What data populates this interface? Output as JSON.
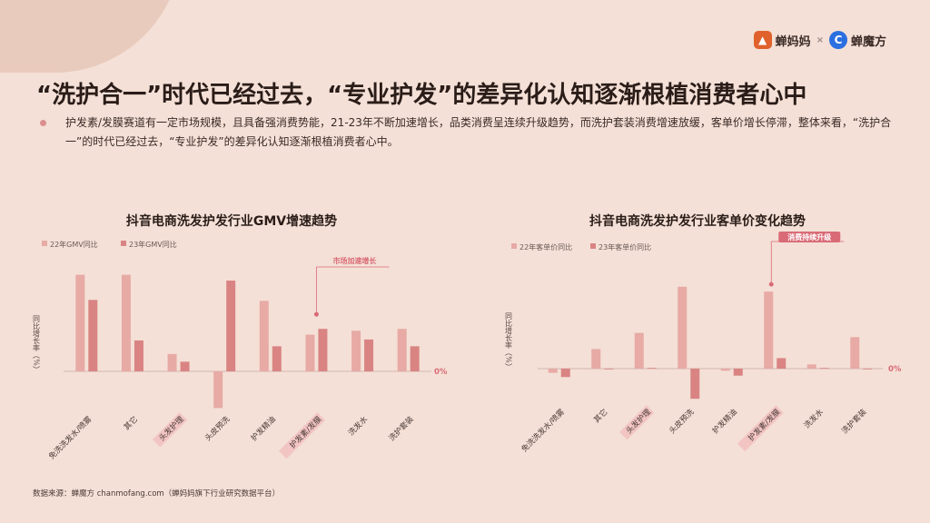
{
  "header": {
    "logo_1": "蝉妈妈",
    "separator": "×",
    "logo_2": "蝉魔方",
    "headline": "“洗护合一”时代已经过去，“专业护发”的差异化认知逐渐根植消费者心中",
    "bullet": "护发素/发膜赛道有一定市场规模，且具备强消费势能，21-23年不断加速增长，品类消费呈连续升级趋势，而洗护套装消费增速放缓，客单价增长停滞，整体来看，“洗护合一”的时代已经过去，“专业护发”的差异化认知逐渐根植消费者心中。"
  },
  "footer": {
    "source": "数据来源：蝉魔方 chanmofang.com（蝉妈妈旗下行业研究数据平台）"
  },
  "colors": {
    "light": "#e7aaa5",
    "dark": "#d98483",
    "accent": "#d96b77",
    "highlight": "#f2c5c3"
  },
  "chart_data": [
    {
      "type": "bar",
      "title": "抖音电商洗发护发行业GMV增速趋势",
      "ylabel": "同比增长率（%）",
      "zero_label": "0%",
      "annotation": "市场加速增长",
      "annotation_category": "护发素/发膜",
      "highlight_categories": [
        "头发护理",
        "护发素/发膜"
      ],
      "categories": [
        "免洗洗发水/喷雾",
        "其它",
        "头发护理",
        "头皮预洗",
        "护发精油",
        "护发素/发膜",
        "洗发水",
        "洗护套装"
      ],
      "ylim": [
        -45,
        110
      ],
      "series": [
        {
          "name": "22年GMV同比",
          "values": [
            100,
            100,
            18,
            -38,
            73,
            38,
            42,
            44
          ]
        },
        {
          "name": "23年GMV同比",
          "values": [
            74,
            32,
            10,
            94,
            26,
            44,
            33,
            26
          ]
        }
      ]
    },
    {
      "type": "bar",
      "title": "抖音电商洗发护发行业客单价变化趋势",
      "ylabel": "同比增长率（%）",
      "zero_label": "0%",
      "annotation": "消费持续升级",
      "annotation_category": "护发素/发膜",
      "highlight_categories": [
        "头发护理",
        "护发素/发膜"
      ],
      "categories": [
        "免洗洗发水/喷雾",
        "其它",
        "头发护理",
        "头皮预洗",
        "护发精油",
        "护发素/发膜",
        "洗发水",
        "洗护套装"
      ],
      "ylim": [
        -45,
        140
      ],
      "series": [
        {
          "name": "22年客单价同比",
          "values": [
            -6,
            28,
            51,
            117,
            -3,
            110,
            6,
            45
          ]
        },
        {
          "name": "23年客单价同比",
          "values": [
            -12,
            -1,
            1,
            -43,
            -10,
            15,
            1,
            0
          ]
        }
      ]
    }
  ]
}
